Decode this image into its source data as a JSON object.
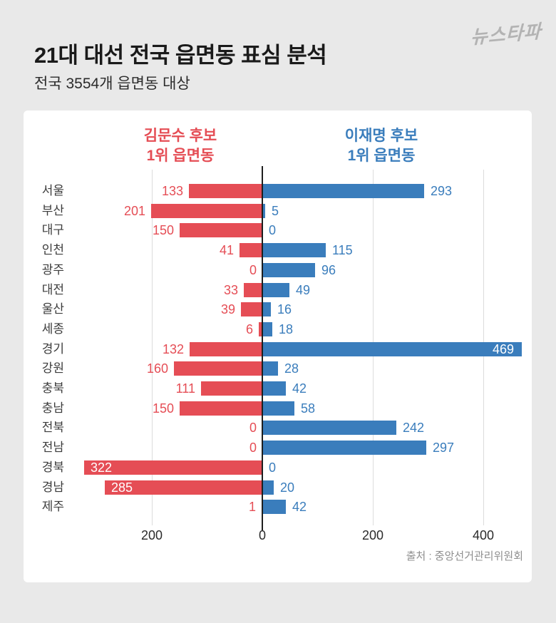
{
  "page": {
    "background": "#e9e9e9",
    "title": "21대 대선 전국 읍면동 표심 분석",
    "subtitle": "전국 3554개 읍면동 대상",
    "logo": "뉴스타파",
    "source": "출처 : 중앙선거관리위원회"
  },
  "legend": {
    "left": {
      "line1": "김문수 후보",
      "line2": "1위 읍면동",
      "color": "#e54d55"
    },
    "right": {
      "line1": "이재명 후보",
      "line2": "1위 읍면동",
      "color": "#3a7dbc"
    }
  },
  "chart_data": {
    "type": "bar",
    "variant": "horizontal-diverging",
    "title": "21대 대선 전국 읍면동 표심 분석",
    "subtitle": "전국 3554개 읍면동 대상",
    "categories": [
      "서울",
      "부산",
      "대구",
      "인천",
      "광주",
      "대전",
      "울산",
      "세종",
      "경기",
      "강원",
      "충북",
      "충남",
      "전북",
      "전남",
      "경북",
      "경남",
      "제주"
    ],
    "series": [
      {
        "name": "김문수 후보 1위 읍면동",
        "side": "left",
        "color": "#e54d55",
        "values": [
          133,
          201,
          150,
          41,
          0,
          33,
          39,
          6,
          132,
          160,
          111,
          150,
          0,
          0,
          322,
          285,
          1
        ]
      },
      {
        "name": "이재명 후보 1위 읍면동",
        "side": "right",
        "color": "#3a7dbc",
        "values": [
          293,
          5,
          0,
          115,
          96,
          49,
          16,
          18,
          469,
          28,
          42,
          58,
          242,
          297,
          0,
          20,
          42
        ]
      }
    ],
    "x_ticks": [
      {
        "value": -200,
        "label": "200"
      },
      {
        "value": 0,
        "label": "0"
      },
      {
        "value": 200,
        "label": "200"
      },
      {
        "value": 400,
        "label": "400"
      }
    ],
    "xlim": [
      -435,
      490
    ],
    "grid": true,
    "legend_position": "top",
    "inside_label_min": {
      "left": 260,
      "right": 440
    },
    "source": "출처 : 중앙선거관리위원회"
  }
}
